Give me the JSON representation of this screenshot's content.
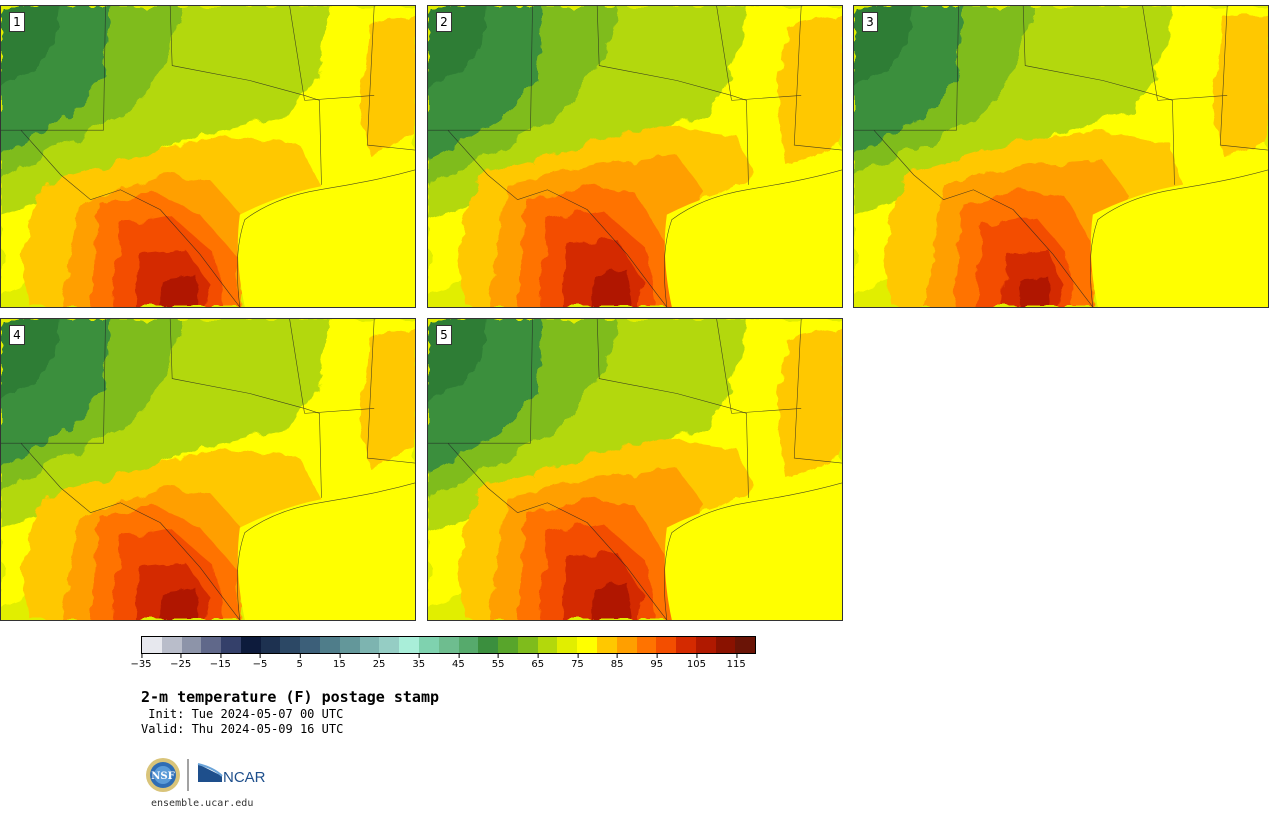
{
  "header": {
    "title": "2-m temperature (F) postage stamp",
    "init": " Init: Tue 2024-05-07 00 UTC",
    "valid": "Valid: Thu 2024-05-09 16 UTC"
  },
  "members": [
    {
      "label": "1"
    },
    {
      "label": "2"
    },
    {
      "label": "3"
    },
    {
      "label": "4"
    },
    {
      "label": "5"
    }
  ],
  "colorbar": {
    "colors": [
      "#e7e8ee",
      "#b9bdca",
      "#8d94a9",
      "#60688a",
      "#34406a",
      "#0d1b3c",
      "#1d3150",
      "#2c4865",
      "#3c5f79",
      "#4f7d8a",
      "#63979a",
      "#7db4b0",
      "#95cdc4",
      "#a9eed9",
      "#7fd2af",
      "#6ebd8f",
      "#56aa6c",
      "#3b8f3e",
      "#58a52b",
      "#7fbc1c",
      "#b3d80c",
      "#e1ee00",
      "#ffff00",
      "#ffc800",
      "#ff9f00",
      "#ff7300",
      "#f34e00",
      "#d42a00",
      "#b01900",
      "#8a1200",
      "#6a1406"
    ],
    "ticks": [
      "−35",
      "−25",
      "−15",
      "−5",
      "5",
      "15",
      "25",
      "35",
      "45",
      "55",
      "65",
      "75",
      "85",
      "95",
      "105",
      "115"
    ],
    "min": -35,
    "max": 120
  },
  "logos": {
    "nsf_text": "NSF",
    "ncar_text": "NCAR"
  },
  "footer": {
    "url": "ensemble.ucar.edu"
  }
}
